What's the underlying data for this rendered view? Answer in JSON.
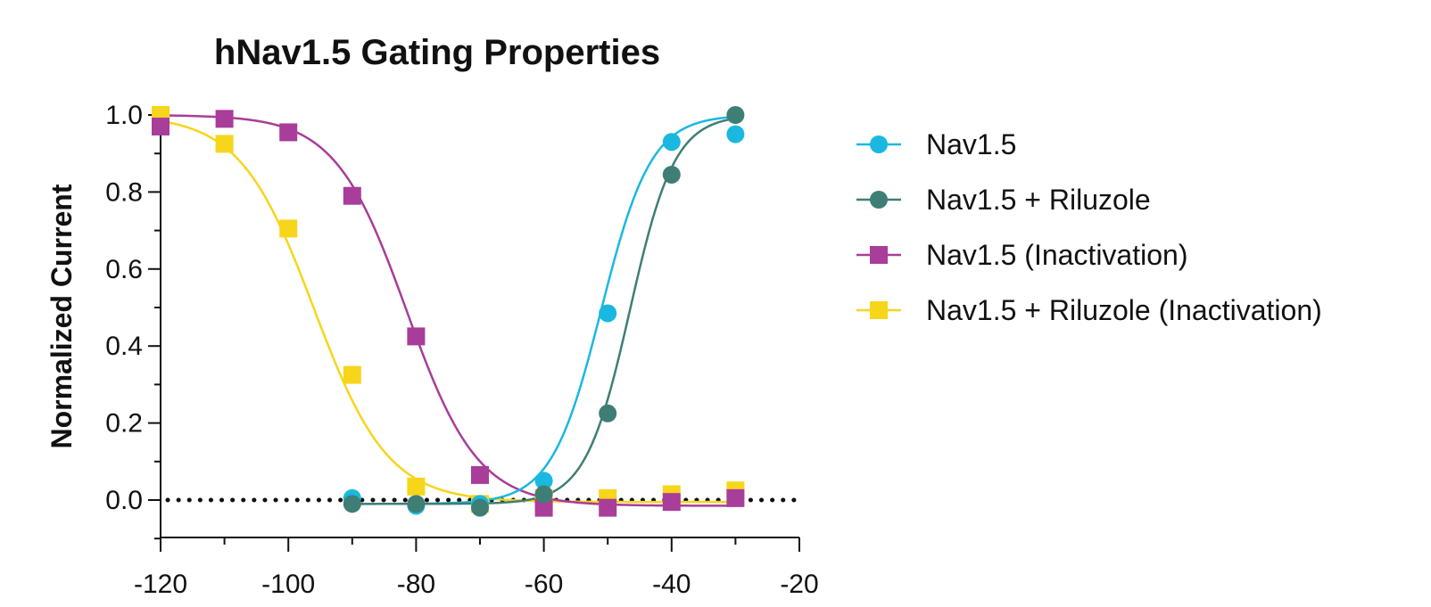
{
  "chart_data": {
    "type": "line",
    "title": "hNav1.5 Gating Properties",
    "xlabel": "",
    "ylabel": "Normalized Current",
    "xlim": [
      -120,
      -20
    ],
    "ylim": [
      -0.1,
      1.0
    ],
    "x_ticks": [
      "-120",
      "-100",
      "-80",
      "-60",
      "-40",
      "-20"
    ],
    "y_ticks": [
      "0.0",
      "0.2",
      "0.4",
      "0.6",
      "0.8",
      "1.0"
    ],
    "reference_line": {
      "y": 0.0,
      "style": "dotted"
    },
    "legend_position": "right",
    "series": [
      {
        "name": "Nav1.5",
        "color": "#1ab8e0",
        "marker": "circle",
        "x": [
          -90,
          -80,
          -70,
          -60,
          -50,
          -40,
          -30
        ],
        "y": [
          0.005,
          -0.015,
          -0.01,
          0.05,
          0.485,
          0.93,
          0.95
        ],
        "fit": {
          "kind": "boltzmann-activation",
          "bottom": -0.01,
          "top": 1.0,
          "v_half": -51.0,
          "slope": 3.9,
          "x_range": [
            -90,
            -30
          ]
        }
      },
      {
        "name": "Nav1.5 + Riluzole",
        "color": "#3f7e74",
        "marker": "circle",
        "x": [
          -90,
          -80,
          -70,
          -60,
          -50,
          -40,
          -30
        ],
        "y": [
          -0.01,
          -0.01,
          -0.02,
          0.015,
          0.225,
          0.845,
          1.0
        ],
        "fit": {
          "kind": "boltzmann-activation",
          "bottom": -0.01,
          "top": 1.0,
          "v_half": -46.5,
          "slope": 3.5,
          "x_range": [
            -90,
            -30
          ]
        }
      },
      {
        "name": "Nav1.5 (Inactivation)",
        "color": "#a83d9a",
        "marker": "square",
        "x": [
          -120,
          -110,
          -100,
          -90,
          -80,
          -70,
          -60,
          -50,
          -40,
          -30
        ],
        "y": [
          0.97,
          0.99,
          0.955,
          0.79,
          0.425,
          0.065,
          -0.02,
          -0.02,
          -0.005,
          0.005
        ],
        "fit": {
          "kind": "boltzmann-inactivation",
          "bottom": -0.015,
          "top": 1.0,
          "v_half": -81.5,
          "slope": 5.6,
          "x_range": [
            -120,
            -30
          ]
        }
      },
      {
        "name": "Nav1.5 + Riluzole (Inactivation)",
        "color": "#f7d51a",
        "marker": "square",
        "x": [
          -120,
          -110,
          -100,
          -90,
          -80,
          -70,
          -60,
          -50,
          -40,
          -30
        ],
        "y": [
          1.0,
          0.925,
          0.705,
          0.325,
          0.035,
          -0.01,
          0.005,
          0.005,
          0.015,
          0.025
        ],
        "fit": {
          "kind": "boltzmann-inactivation",
          "bottom": -0.005,
          "top": 1.0,
          "v_half": -96.0,
          "slope": 5.8,
          "x_range": [
            -120,
            -30
          ]
        }
      }
    ]
  }
}
